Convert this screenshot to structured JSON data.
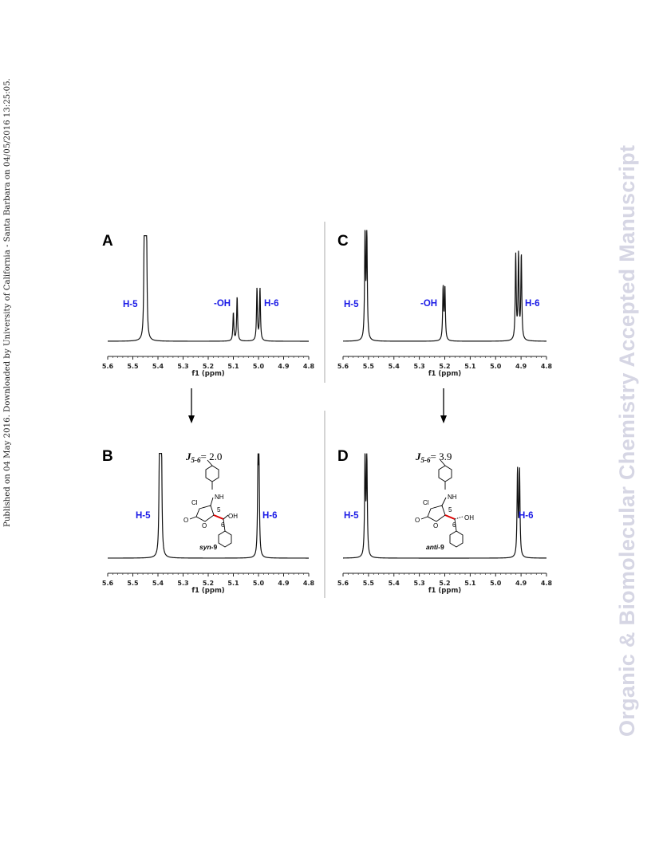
{
  "sidebar_left_text": "Published on 04 May 2016. Downloaded by University of California - Santa Barbara on 04/05/2016 13:25:05.",
  "watermark_text": "Organic & Biomolecular Chemistry Accepted Manuscript",
  "figure": {
    "panels": [
      {
        "letter": "A",
        "peak_labels": [
          "H-5",
          "-OH",
          "H-6"
        ]
      },
      {
        "letter": "B",
        "peak_labels": [
          "H-5",
          "H-6"
        ],
        "j_label": "J",
        "j_sub": "5-6",
        "j_value": "= 2.0",
        "molecule": {
          "cl": "Cl",
          "nh": "NH",
          "o_carbonyl": "O",
          "o_ring": "O",
          "oh": "OH",
          "n5": "5",
          "n6": "6",
          "name_prefix": "syn",
          "name_suffix": "-9"
        }
      },
      {
        "letter": "C",
        "peak_labels": [
          "H-5",
          "-OH",
          "H-6"
        ]
      },
      {
        "letter": "D",
        "peak_labels": [
          "H-5",
          "H-6"
        ],
        "j_label": "J",
        "j_sub": "5-6",
        "j_value": "= 3.9",
        "molecule": {
          "cl": "Cl",
          "nh": "NH",
          "o_carbonyl": "O",
          "o_ring": "O",
          "oh": "OH",
          "n5": "5",
          "n6": "6",
          "name_prefix": "anti",
          "name_suffix": "-9"
        }
      }
    ],
    "axis": {
      "ticks": [
        "5.6",
        "5.5",
        "5.4",
        "5.3",
        "5.2",
        "5.1",
        "5.0",
        "4.9",
        "4.8"
      ],
      "label": "f1 (ppm)"
    }
  },
  "chart_data": [
    {
      "type": "line",
      "panel": "A",
      "xlabel": "f1 (ppm)",
      "xlim": [
        5.6,
        4.8
      ],
      "inverted_x": true,
      "peaks": [
        {
          "label": "H-5",
          "ppm": 5.45
        },
        {
          "label": "-OH",
          "ppm": 5.09
        },
        {
          "label": "H-6",
          "ppm": 5.0
        }
      ]
    },
    {
      "type": "line",
      "panel": "B",
      "xlabel": "f1 (ppm)",
      "xlim": [
        5.6,
        4.8
      ],
      "inverted_x": true,
      "peaks": [
        {
          "label": "H-5",
          "ppm": 5.39
        },
        {
          "label": "H-6",
          "ppm": 5.0
        }
      ],
      "J56_Hz": 2.0
    },
    {
      "type": "line",
      "panel": "C",
      "xlabel": "f1 (ppm)",
      "xlim": [
        5.6,
        4.8
      ],
      "inverted_x": true,
      "peaks": [
        {
          "label": "H-5",
          "ppm": 5.51
        },
        {
          "label": "-OH",
          "ppm": 5.2
        },
        {
          "label": "H-6",
          "ppm": 4.91
        }
      ]
    },
    {
      "type": "line",
      "panel": "D",
      "xlabel": "f1 (ppm)",
      "xlim": [
        5.6,
        4.8
      ],
      "inverted_x": true,
      "peaks": [
        {
          "label": "H-5",
          "ppm": 5.51
        },
        {
          "label": "H-6",
          "ppm": 4.91
        }
      ],
      "J56_Hz": 3.9
    }
  ]
}
